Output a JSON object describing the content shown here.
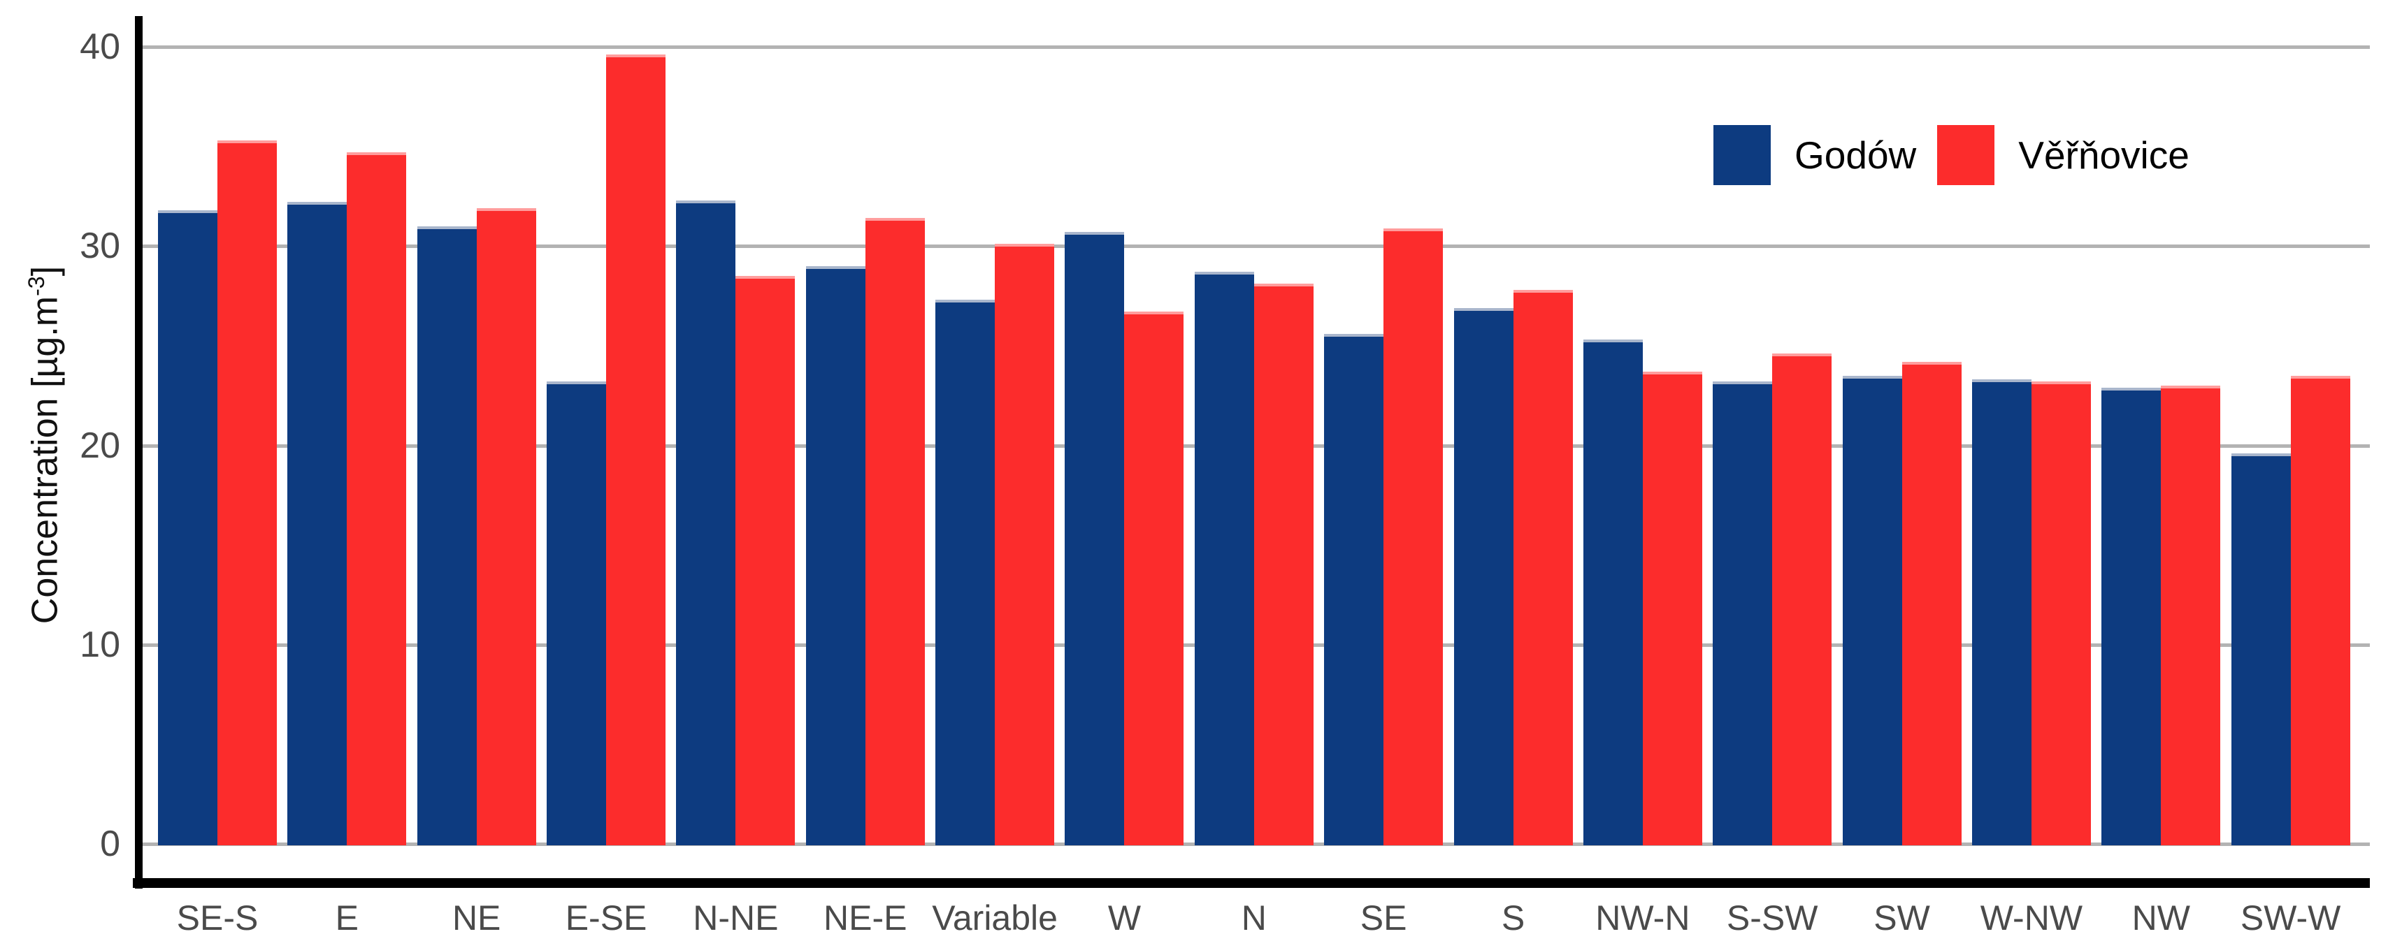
{
  "chart_data": {
    "type": "bar",
    "title": "",
    "categories": [
      "SE-S",
      "E",
      "NE",
      "E-SE",
      "N-NE",
      "NE-E",
      "Variable",
      "W",
      "N",
      "SE",
      "S",
      "NW-N",
      "S-SW",
      "SW",
      "W-NW",
      "NW",
      "SW-W"
    ],
    "series": [
      {
        "name": "Godów",
        "color": "#0d3b80",
        "values": [
          31.8,
          32.2,
          31.0,
          23.2,
          32.3,
          29.0,
          27.3,
          30.7,
          28.7,
          25.6,
          26.9,
          25.3,
          23.2,
          23.5,
          23.3,
          22.9,
          19.6
        ]
      },
      {
        "name": "Věřňovice",
        "color": "#fc2c2c",
        "values": [
          35.3,
          34.7,
          31.9,
          39.6,
          28.5,
          31.4,
          30.1,
          26.7,
          28.1,
          30.9,
          27.8,
          23.7,
          24.6,
          24.2,
          23.2,
          23.0,
          23.5
        ]
      }
    ],
    "xlabel": "",
    "ylabel_prefix": "Concentration [µg.m",
    "ylabel_sup": "-3",
    "ylabel_suffix": "]",
    "yticks": [
      0,
      10,
      20,
      30,
      40
    ],
    "ylim": [
      0,
      40
    ],
    "grid": true,
    "gridline_color": "#b3b3b3",
    "axis_color": "#000000",
    "tick_label_color": "#4a4a4a",
    "legend_position": "top-right",
    "background": "#ffffff"
  }
}
